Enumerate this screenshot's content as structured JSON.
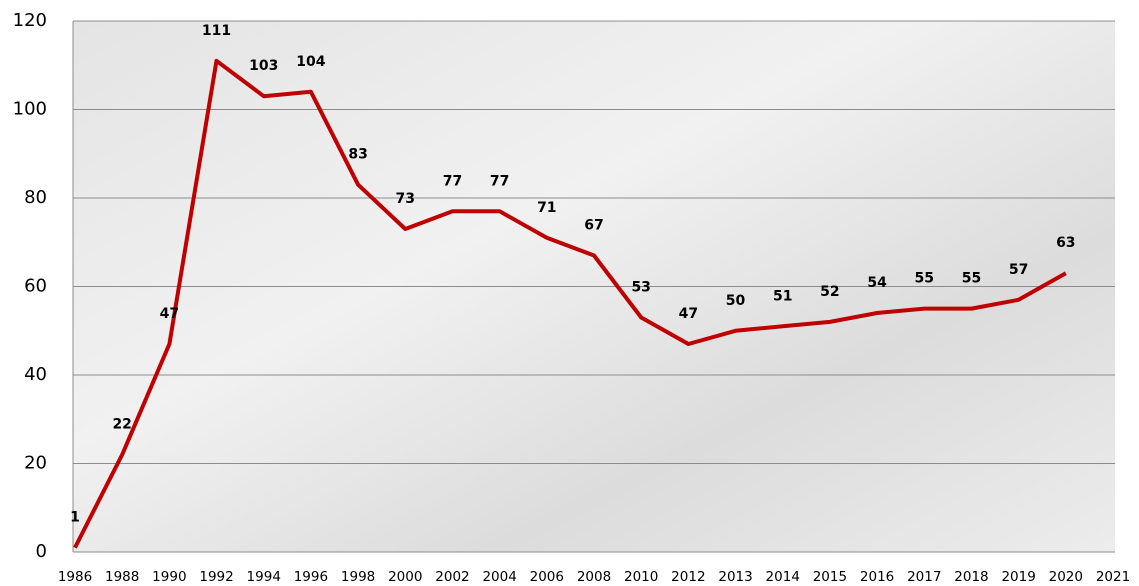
{
  "chart_data": {
    "type": "line",
    "categories": [
      "1986",
      "1988",
      "1990",
      "1992",
      "1994",
      "1996",
      "1998",
      "2000",
      "2002",
      "2004",
      "2006",
      "2008",
      "2010",
      "2012",
      "2013",
      "2014",
      "2015",
      "2016",
      "2017",
      "2018",
      "2019",
      "2020",
      "2021"
    ],
    "series": [
      {
        "name": "value",
        "color": "#c00000",
        "values": [
          1,
          22,
          47,
          111,
          103,
          104,
          83,
          73,
          77,
          77,
          71,
          67,
          53,
          47,
          50,
          51,
          52,
          54,
          55,
          55,
          57,
          63,
          null
        ]
      }
    ],
    "ylim": [
      0,
      120
    ],
    "yticks": [
      0,
      20,
      40,
      60,
      80,
      100,
      120
    ],
    "grid": true
  }
}
